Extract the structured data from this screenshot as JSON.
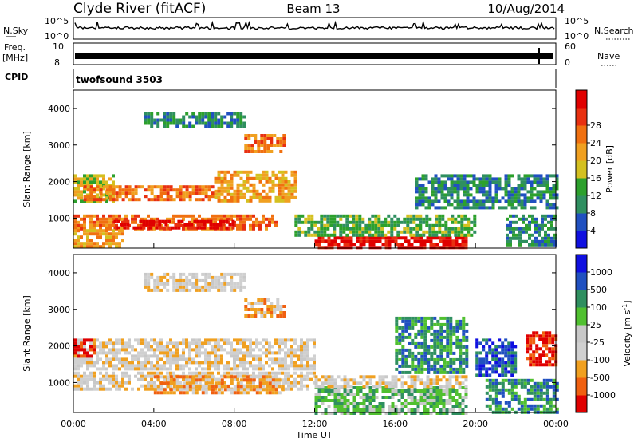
{
  "header": {
    "station": "Clyde River (fitACF)",
    "beam": "Beam 13",
    "date": "10/Aug/2014"
  },
  "aux_panels": {
    "nsky_label": "N.Sky",
    "nsky_ticks": [
      "10^5",
      "10^0"
    ],
    "nsearch_label": "N.Search",
    "nsearch_ticks": [
      "10^5",
      "10^0"
    ],
    "freq_label_1": "Freq.",
    "freq_label_2": "[MHz]",
    "freq_ticks": [
      "10",
      "8"
    ],
    "nave_label": "Nave",
    "nave_ticks": [
      "60",
      "0"
    ],
    "cpid_label": "CPID",
    "cpid_value": "twofsound 3503"
  },
  "chart_data": [
    {
      "type": "heatmap",
      "name": "power",
      "ylabel": "Slant Range [km]",
      "yticks": [
        1000,
        2000,
        3000,
        4000
      ],
      "ylim": [
        180,
        4500
      ],
      "xlim_hours": [
        0,
        24
      ],
      "colorbar_label": "Power [dB]",
      "colorbar_ticks": [
        "4",
        "8",
        "12",
        "16",
        "20",
        "24",
        "28"
      ],
      "colorbar_colors": [
        "#1010e0",
        "#2050c0",
        "#2f8f60",
        "#2ca02c",
        "#d4c020",
        "#f0a020",
        "#f07010",
        "#e83010",
        "#e00000"
      ],
      "regions": [
        {
          "t": [
            0.0,
            2.0
          ],
          "r": [
            1500,
            2200
          ],
          "level": 4
        },
        {
          "t": [
            0.5,
            7.0
          ],
          "r": [
            1500,
            1900
          ],
          "level": 6
        },
        {
          "t": [
            7.0,
            11.0
          ],
          "r": [
            1500,
            2300
          ],
          "level": 5
        },
        {
          "t": [
            0.0,
            10.0
          ],
          "r": [
            700,
            1100
          ],
          "level": 6
        },
        {
          "t": [
            2.0,
            8.0
          ],
          "r": [
            700,
            950
          ],
          "level": 8
        },
        {
          "t": [
            0.0,
            2.5
          ],
          "r": [
            200,
            700
          ],
          "level": 5
        },
        {
          "t": [
            8.5,
            10.5
          ],
          "r": [
            2800,
            3300
          ],
          "level": 6
        },
        {
          "t": [
            3.5,
            8.5
          ],
          "r": [
            3500,
            3900
          ],
          "level": 2
        },
        {
          "t": [
            12.0,
            19.5
          ],
          "r": [
            200,
            500
          ],
          "level": 8
        },
        {
          "t": [
            11.0,
            20.0
          ],
          "r": [
            500,
            1100
          ],
          "level": 3
        },
        {
          "t": [
            17.0,
            24.0
          ],
          "r": [
            1300,
            2200
          ],
          "level": 2
        },
        {
          "t": [
            21.5,
            24.0
          ],
          "r": [
            300,
            1100
          ],
          "level": 2
        }
      ]
    },
    {
      "type": "heatmap",
      "name": "velocity",
      "ylabel": "Slant Range [km]",
      "yticks": [
        1000,
        2000,
        3000,
        4000
      ],
      "ylim": [
        180,
        4500
      ],
      "xlim_hours": [
        0,
        24
      ],
      "xticks": [
        "00:00",
        "04:00",
        "08:00",
        "12:00",
        "16:00",
        "20:00",
        "00:00"
      ],
      "xlabel": "Time UT",
      "colorbar_label": "Velocity [m s^-1]",
      "colorbar_ticks": [
        "-1000",
        "-500",
        "-100",
        "-25",
        "25",
        "100",
        "500",
        "1000"
      ],
      "colorbar_colors": [
        "#e00000",
        "#f06010",
        "#f0a020",
        "#d0d0d0",
        "#c8c8c8",
        "#50c030",
        "#2f8f60",
        "#2050c0",
        "#1010e0"
      ],
      "regions": [
        {
          "t": [
            0.0,
            12.0
          ],
          "r": [
            1400,
            2200
          ],
          "level": 3
        },
        {
          "t": [
            0.0,
            12.0
          ],
          "r": [
            800,
            1300
          ],
          "level": 3
        },
        {
          "t": [
            4.0,
            10.5
          ],
          "r": [
            700,
            1200
          ],
          "level": 2
        },
        {
          "t": [
            8.5,
            10.5
          ],
          "r": [
            2800,
            3300
          ],
          "level": 2
        },
        {
          "t": [
            3.5,
            8.5
          ],
          "r": [
            3500,
            4000
          ],
          "level": 3
        },
        {
          "t": [
            12.0,
            19.5
          ],
          "r": [
            200,
            900
          ],
          "level": 5
        },
        {
          "t": [
            12.0,
            19.5
          ],
          "r": [
            900,
            1200
          ],
          "level": 3
        },
        {
          "t": [
            20.0,
            22.0
          ],
          "r": [
            1200,
            2200
          ],
          "level": 7
        },
        {
          "t": [
            22.5,
            24.0
          ],
          "r": [
            1500,
            2400
          ],
          "level": 0
        },
        {
          "t": [
            20.5,
            24.0
          ],
          "r": [
            200,
            1100
          ],
          "level": 6
        },
        {
          "t": [
            16.0,
            19.5
          ],
          "r": [
            1300,
            2800
          ],
          "level": 6
        },
        {
          "t": [
            0.0,
            1.0
          ],
          "r": [
            1700,
            2200
          ],
          "level": 0
        }
      ]
    }
  ]
}
